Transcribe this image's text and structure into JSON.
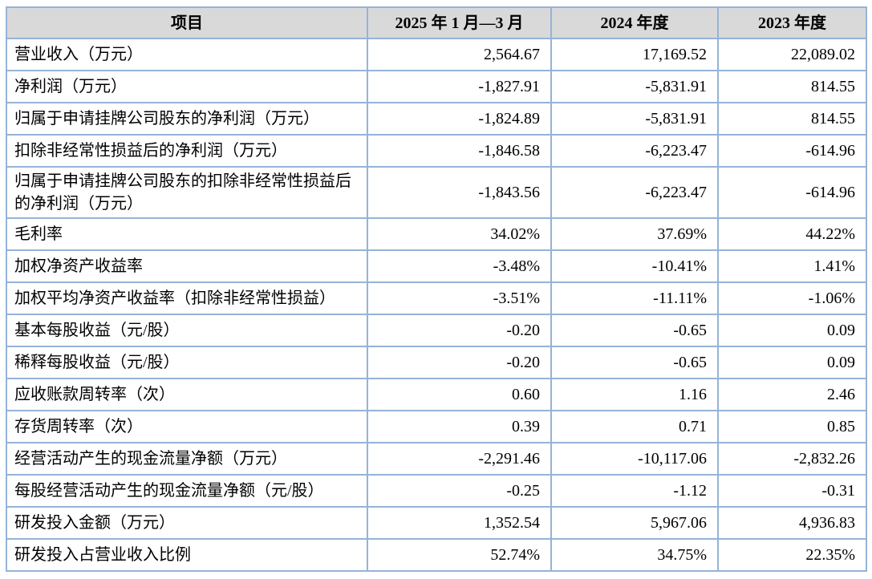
{
  "colors": {
    "border": "#95b3d7",
    "header_bg": "#d9d9d9",
    "text": "#000000",
    "page_bg": "#ffffff"
  },
  "table": {
    "headers": [
      "项目",
      "2025 年 1 月—3 月",
      "2024 年度",
      "2023 年度"
    ],
    "rows": [
      {
        "label": "营业收入（万元）",
        "values": [
          "2,564.67",
          "17,169.52",
          "22,089.02"
        ]
      },
      {
        "label": "净利润（万元）",
        "values": [
          "-1,827.91",
          "-5,831.91",
          "814.55"
        ]
      },
      {
        "label": "归属于申请挂牌公司股东的净利润（万元）",
        "values": [
          "-1,824.89",
          "-5,831.91",
          "814.55"
        ]
      },
      {
        "label": "扣除非经常性损益后的净利润（万元）",
        "values": [
          "-1,846.58",
          "-6,223.47",
          "-614.96"
        ]
      },
      {
        "label": "归属于申请挂牌公司股东的扣除非经常性损益后的净利润（万元）",
        "values": [
          "-1,843.56",
          "-6,223.47",
          "-614.96"
        ]
      },
      {
        "label": "毛利率",
        "values": [
          "34.02%",
          "37.69%",
          "44.22%"
        ]
      },
      {
        "label": "加权净资产收益率",
        "values": [
          "-3.48%",
          "-10.41%",
          "1.41%"
        ]
      },
      {
        "label": "加权平均净资产收益率（扣除非经常性损益）",
        "values": [
          "-3.51%",
          "-11.11%",
          "-1.06%"
        ]
      },
      {
        "label": "基本每股收益（元/股）",
        "values": [
          "-0.20",
          "-0.65",
          "0.09"
        ]
      },
      {
        "label": "稀释每股收益（元/股）",
        "values": [
          "-0.20",
          "-0.65",
          "0.09"
        ]
      },
      {
        "label": "应收账款周转率（次）",
        "values": [
          "0.60",
          "1.16",
          "2.46"
        ]
      },
      {
        "label": "存货周转率（次）",
        "values": [
          "0.39",
          "0.71",
          "0.85"
        ]
      },
      {
        "label": "经营活动产生的现金流量净额（万元）",
        "values": [
          "-2,291.46",
          "-10,117.06",
          "-2,832.26"
        ]
      },
      {
        "label": "每股经营活动产生的现金流量净额（元/股）",
        "values": [
          "-0.25",
          "-1.12",
          "-0.31"
        ]
      },
      {
        "label": "研发投入金额（万元）",
        "values": [
          "1,352.54",
          "5,967.06",
          "4,936.83"
        ]
      },
      {
        "label": "研发投入占营业收入比例",
        "values": [
          "52.74%",
          "34.75%",
          "22.35%"
        ]
      }
    ]
  }
}
